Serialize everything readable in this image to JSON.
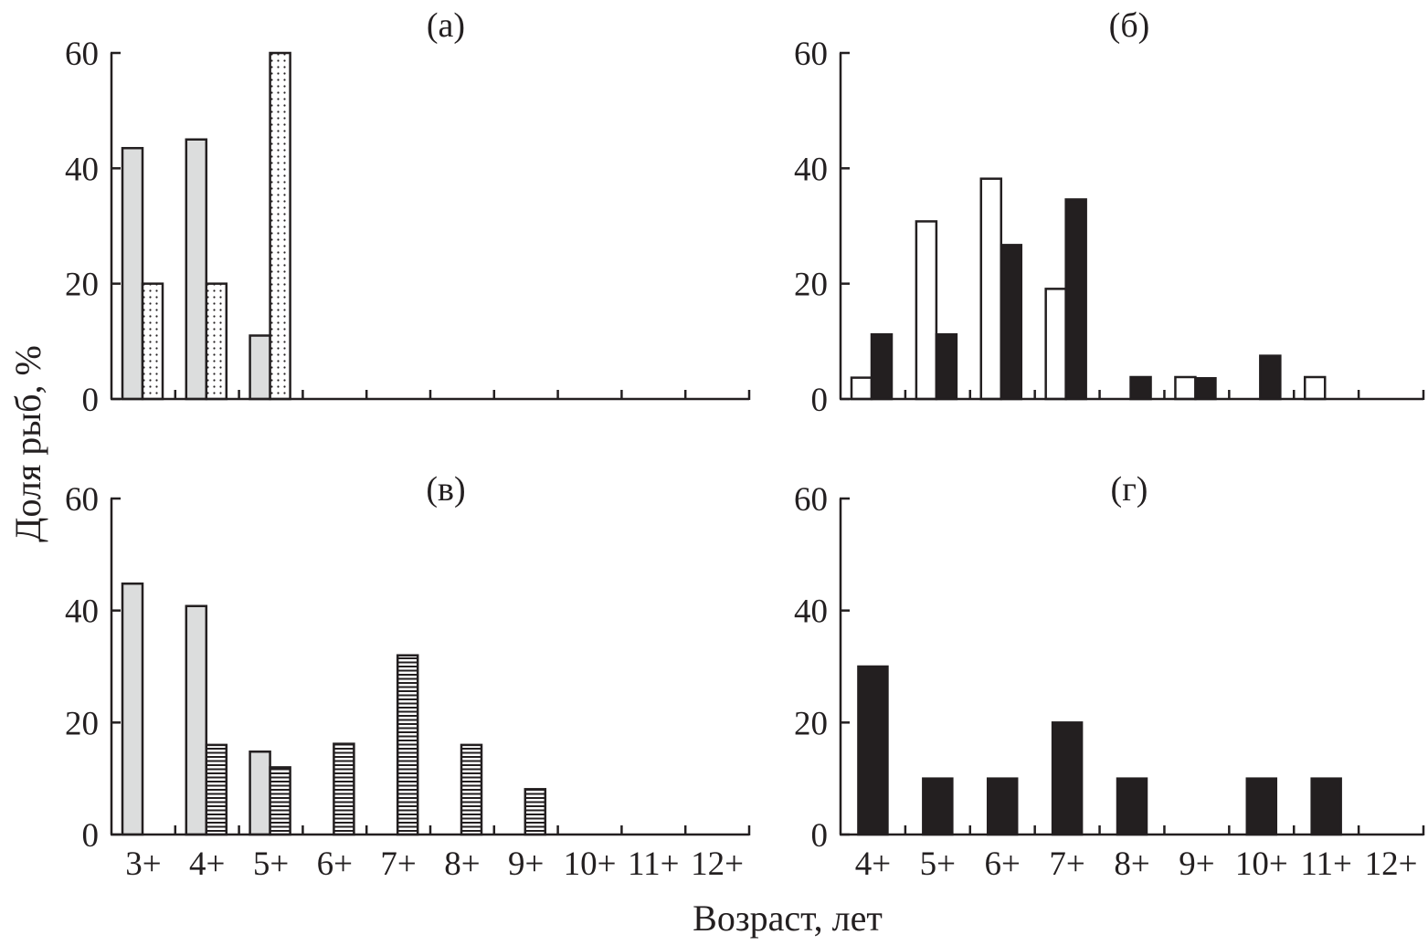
{
  "figure": {
    "ylabel": "Доля рыб, %",
    "xlabel": "Возраст, лет"
  },
  "chart_data": [
    {
      "type": "bar",
      "panel": "a",
      "title": "(а)",
      "categories": [
        "3+",
        "4+",
        "5+",
        "6+",
        "7+",
        "8+",
        "9+",
        "10+",
        "11+",
        "12+"
      ],
      "category_labels_visible": false,
      "ylim": [
        0,
        60
      ],
      "yticks": [
        0,
        20,
        40,
        60
      ],
      "series": [
        {
          "name": "series-gray",
          "fill": "gray",
          "values": [
            43.5,
            45,
            11,
            0,
            0,
            0,
            0,
            0,
            0,
            0
          ]
        },
        {
          "name": "series-dotted",
          "fill": "dotted",
          "values": [
            20,
            20,
            60,
            0,
            0,
            0,
            0,
            0,
            0,
            0
          ]
        }
      ]
    },
    {
      "type": "bar",
      "panel": "b",
      "title": "(б)",
      "categories": [
        "4+",
        "5+",
        "6+",
        "7+",
        "8+",
        "9+",
        "10+",
        "11+",
        "12+"
      ],
      "category_labels_visible": false,
      "ylim": [
        0,
        60
      ],
      "yticks": [
        0,
        20,
        40,
        60
      ],
      "series": [
        {
          "name": "series-white",
          "fill": "white",
          "values": [
            3.7,
            30.8,
            38.2,
            19.1,
            0,
            3.8,
            0,
            3.8,
            0
          ]
        },
        {
          "name": "series-black",
          "fill": "black",
          "values": [
            11.2,
            11.2,
            26.7,
            34.6,
            3.8,
            3.6,
            7.5,
            0,
            0
          ]
        }
      ]
    },
    {
      "type": "bar",
      "panel": "v",
      "title": "(в)",
      "categories": [
        "3+",
        "4+",
        "5+",
        "6+",
        "7+",
        "8+",
        "9+",
        "10+",
        "11+",
        "12+"
      ],
      "category_labels_visible": true,
      "ylim": [
        0,
        60
      ],
      "yticks": [
        0,
        20,
        40,
        60
      ],
      "series": [
        {
          "name": "series-gray",
          "fill": "gray",
          "values": [
            44.8,
            40.8,
            14.8,
            0,
            0,
            0,
            0,
            0,
            0,
            0
          ]
        },
        {
          "name": "series-hatched",
          "fill": "hatched",
          "values": [
            0,
            16,
            12,
            16.2,
            32,
            16,
            8.1,
            0,
            0,
            0
          ]
        }
      ]
    },
    {
      "type": "bar",
      "panel": "g",
      "title": "(г)",
      "categories": [
        "4+",
        "5+",
        "6+",
        "7+",
        "8+",
        "9+",
        "10+",
        "11+",
        "12+"
      ],
      "category_labels_visible": true,
      "ylim": [
        0,
        60
      ],
      "yticks": [
        0,
        20,
        40,
        60
      ],
      "series": [
        {
          "name": "series-black",
          "fill": "black",
          "values": [
            30,
            10,
            10,
            20,
            10,
            0,
            10,
            10,
            0
          ]
        }
      ]
    }
  ]
}
